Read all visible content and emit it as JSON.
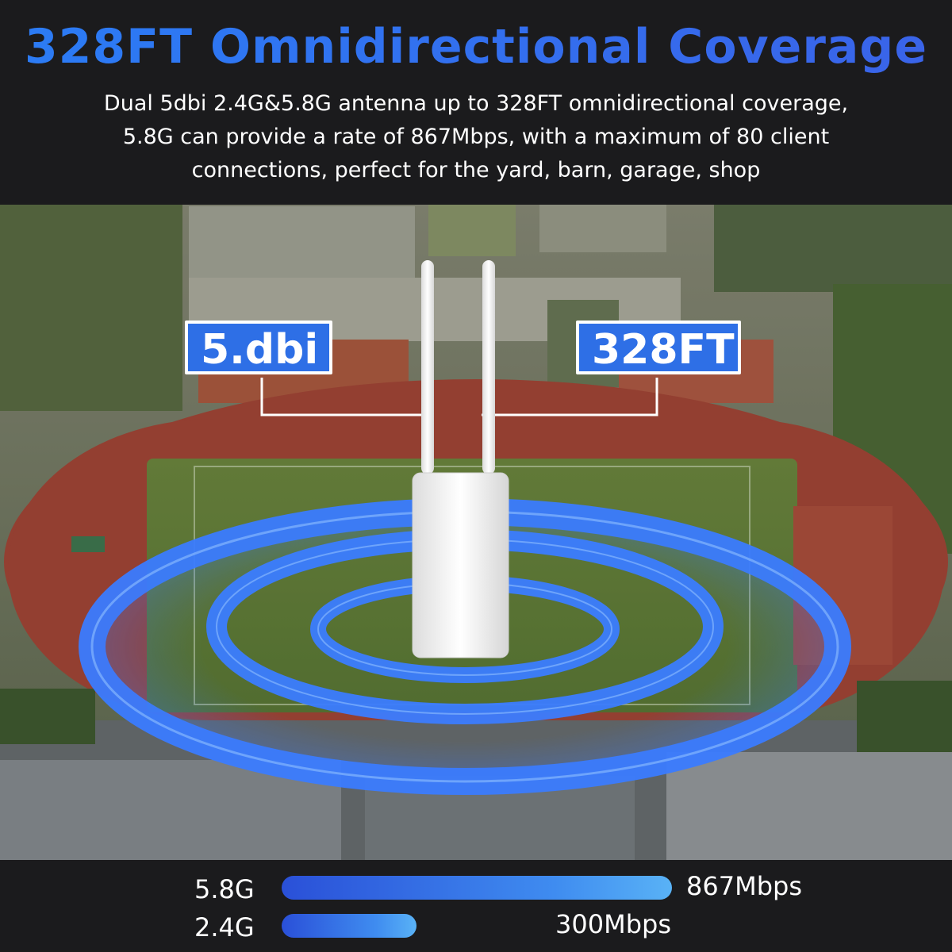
{
  "header": {
    "title": "328FT Omnidirectional Coverage",
    "description_lines": [
      "Dual 5dbi 2.4G&5.8G antenna up to 328FT omnidirectional coverage,",
      "5.8G can provide a rate of 867Mbps, with a maximum of 80 client",
      "connections,  perfect for the yard, barn, garage, shop"
    ]
  },
  "callouts": {
    "gain": "5.dbi",
    "range": "328FT"
  },
  "speeds": [
    {
      "band": "5.8G",
      "rate": "867Mbps",
      "relative_level": 1.0
    },
    {
      "band": "2.4G",
      "rate": "300Mbps",
      "relative_level": 0.346
    }
  ],
  "colors": {
    "accent": "#2e6fe6",
    "title": "#2f7bf0",
    "signal_ring": "#3b7cff",
    "background_band": "#1b1b1d"
  }
}
